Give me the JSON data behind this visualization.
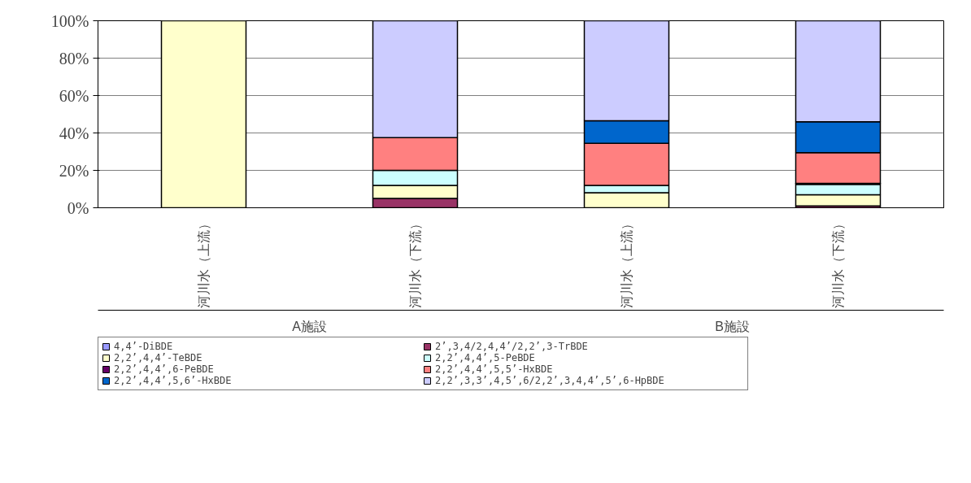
{
  "chart_data": {
    "type": "bar",
    "stacked": true,
    "categories": [
      "河川水（上流）",
      "河川水（下流）",
      "河川水（上流）",
      "河川水（下流）"
    ],
    "annotations": [
      "A施設",
      "B施設"
    ],
    "series": [
      {
        "name": "4,4’-DiBDE",
        "color": "#9999ff",
        "values": [
          0,
          0,
          0,
          0
        ]
      },
      {
        "name": "2’,3,4/2,4,4’/2,2’,3-TrBDE",
        "color": "#993366",
        "values": [
          0,
          5,
          0,
          1
        ]
      },
      {
        "name": "2,2’,4,4’-TeBDE",
        "color": "#ffffcc",
        "values": [
          100,
          7,
          8,
          6
        ]
      },
      {
        "name": "2,2’,4,4’,5-PeBDE",
        "color": "#ccffff",
        "values": [
          0,
          8,
          4,
          5.5
        ]
      },
      {
        "name": "2,2’,4,4’,6-PeBDE",
        "color": "#660066",
        "values": [
          0,
          0,
          0,
          0.5
        ]
      },
      {
        "name": "2,2’,4,4’,5,5’-HxBDE",
        "color": "#ff8080",
        "values": [
          0,
          17.5,
          22.5,
          16.5
        ]
      },
      {
        "name": "2,2’,4,4’,5,6’-HxBDE",
        "color": "#0066cc",
        "values": [
          0,
          0,
          12,
          16.5
        ]
      },
      {
        "name": "2,2’,3,3’,4,5’,6/2,2’,3,4,4’,5’,6-HpBDE",
        "color": "#ccccff",
        "values": [
          0,
          62.5,
          53.5,
          54
        ]
      }
    ],
    "ylim": [
      0,
      100
    ],
    "yticks": [
      {
        "value": 0,
        "label": "0%"
      },
      {
        "value": 20,
        "label": "20%"
      },
      {
        "value": 40,
        "label": "40%"
      },
      {
        "value": 60,
        "label": "60%"
      },
      {
        "value": 80,
        "label": "80%"
      },
      {
        "value": 100,
        "label": "100%"
      }
    ],
    "grid": "y",
    "legend": "bottom"
  }
}
